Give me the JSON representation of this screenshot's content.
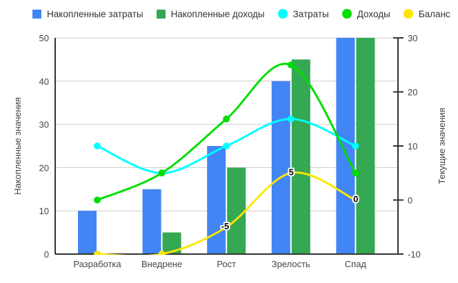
{
  "chart_data": {
    "type": "combo-bar-line",
    "categories": [
      "Разработка",
      "Внедрене",
      "Рост",
      "Зрелость",
      "Спад"
    ],
    "series": [
      {
        "name": "Накопленные затраты",
        "type": "bar",
        "axis": "left",
        "color": "#4285f4",
        "values": [
          10,
          15,
          25,
          40,
          50
        ]
      },
      {
        "name": "Накопленные доходы",
        "type": "bar",
        "axis": "left",
        "color": "#34a853",
        "values": [
          0,
          5,
          20,
          45,
          50
        ]
      },
      {
        "name": "Затраты",
        "type": "line",
        "axis": "right",
        "color": "#00ffff",
        "values": [
          10,
          5,
          10,
          15,
          10
        ]
      },
      {
        "name": "Доходы",
        "type": "line",
        "axis": "right",
        "color": "#00dd00",
        "values": [
          0,
          5,
          15,
          25,
          5
        ]
      },
      {
        "name": "Баланс",
        "type": "line",
        "axis": "right",
        "color": "#ffe500",
        "values": [
          -10,
          -10,
          -5,
          5,
          0
        ],
        "annotations": [
          "",
          "",
          "-5",
          "5",
          "0"
        ]
      }
    ],
    "left_axis": {
      "title": "Накопленные значения",
      "min": 0,
      "max": 50,
      "ticks": [
        0,
        10,
        20,
        30,
        40,
        50
      ]
    },
    "right_axis": {
      "title": "Текущие значения",
      "min": -10,
      "max": 30,
      "ticks": [
        -10,
        0,
        10,
        20,
        30
      ]
    },
    "grid": true,
    "legend_position": "top"
  },
  "colors": {
    "grid": "#cccccc",
    "axis": "#333333",
    "tick_text": "#444444",
    "legend_text": "#333333",
    "background": "#ffffff"
  }
}
